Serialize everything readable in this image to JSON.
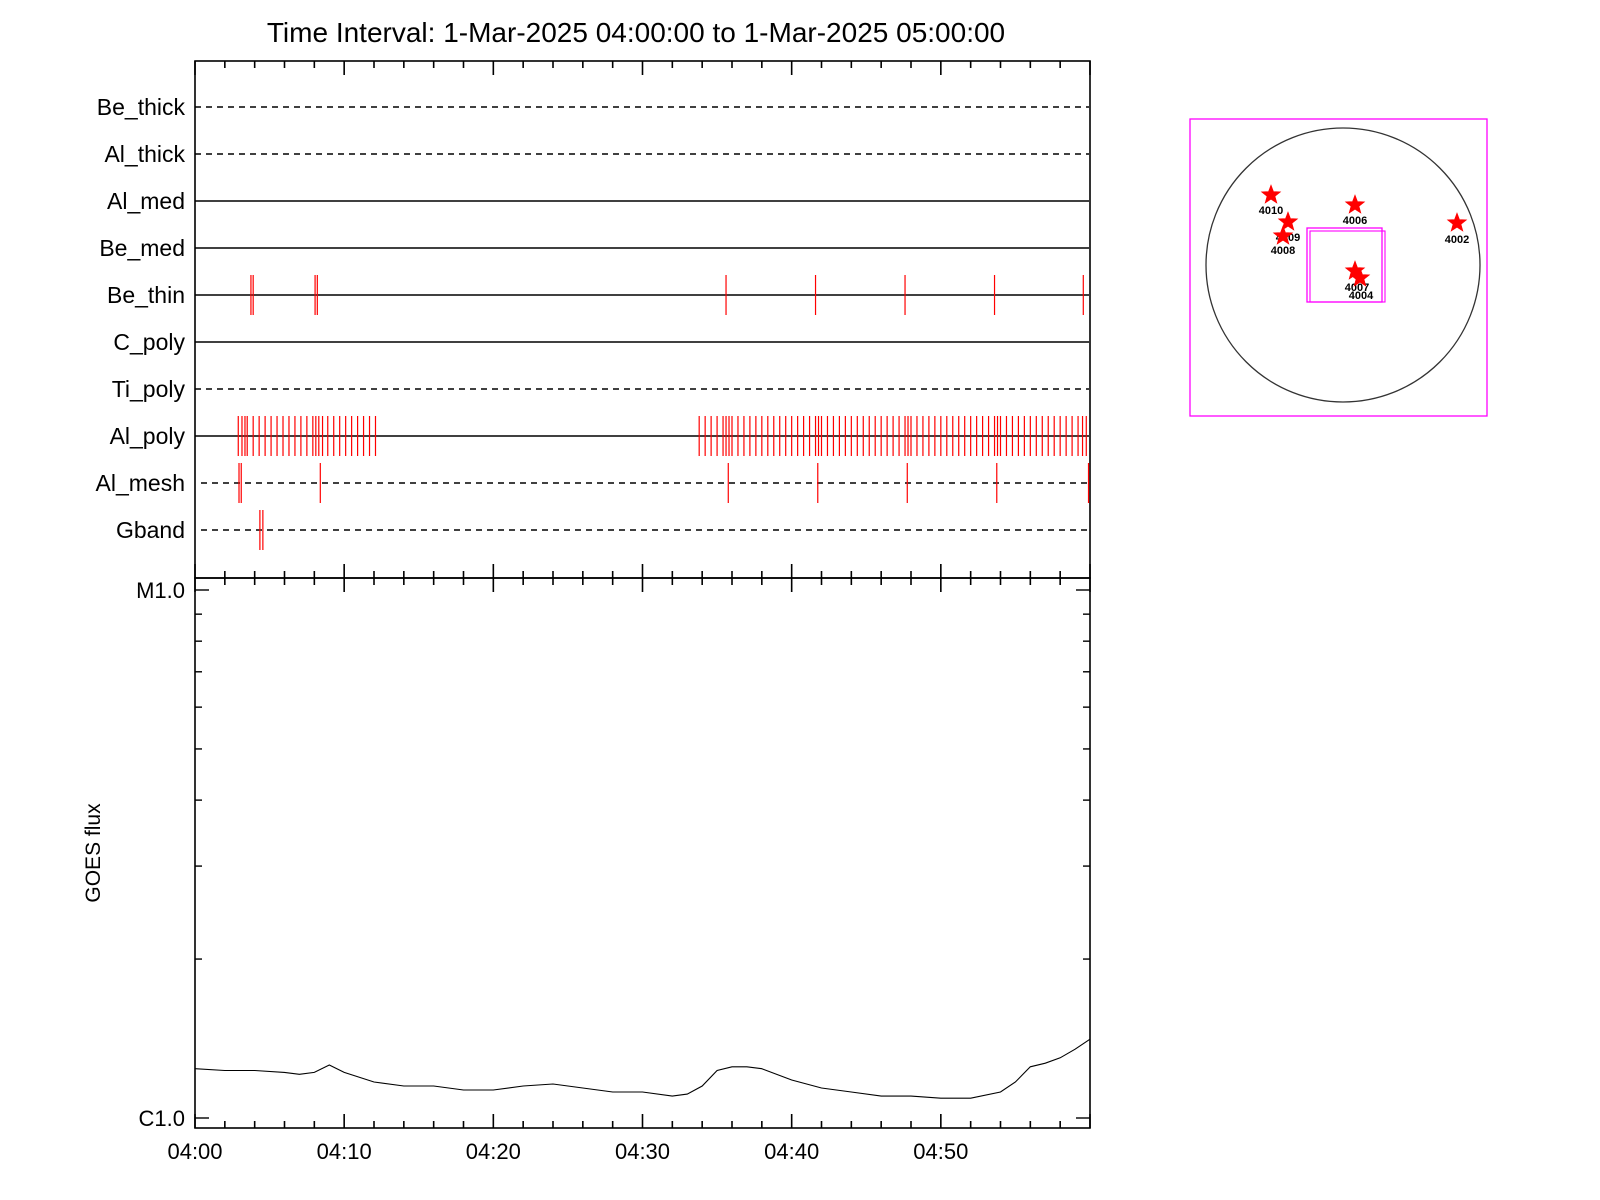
{
  "title": "Time Interval:  1-Mar-2025 04:00:00 to  1-Mar-2025 05:00:00",
  "chart_data": {
    "type": "line",
    "x_range_minutes": [
      0,
      60
    ],
    "x_tick_labels": [
      "04:00",
      "04:10",
      "04:20",
      "04:30",
      "04:40",
      "04:50"
    ],
    "x_tick_values": [
      0,
      10,
      20,
      30,
      40,
      50
    ],
    "filter_rows": [
      {
        "label": "Be_thick",
        "style": "dashed",
        "events": []
      },
      {
        "label": "Al_thick",
        "style": "dashed",
        "events": []
      },
      {
        "label": "Al_med",
        "style": "solid",
        "events": []
      },
      {
        "label": "Be_med",
        "style": "solid",
        "events": []
      },
      {
        "label": "Be_thin",
        "style": "solid",
        "events": [
          3.75,
          3.9,
          8.05,
          8.2,
          35.6,
          41.6,
          47.6,
          53.6,
          59.55
        ]
      },
      {
        "label": "C_poly",
        "style": "solid",
        "events": []
      },
      {
        "label": "Ti_poly",
        "style": "dashed",
        "events": []
      },
      {
        "label": "Al_poly",
        "style": "solid",
        "events": [
          2.9,
          3.15,
          3.35,
          3.5,
          3.9,
          4.3,
          4.7,
          5.1,
          5.5,
          5.9,
          6.3,
          6.7,
          7.1,
          7.5,
          7.9,
          8.1,
          8.3,
          8.55,
          8.9,
          9.3,
          9.7,
          10.1,
          10.5,
          10.9,
          11.3,
          11.7,
          12.1,
          33.8,
          34.2,
          34.6,
          35.0,
          35.4,
          35.6,
          35.8,
          36.0,
          36.4,
          36.8,
          37.2,
          37.6,
          38.0,
          38.4,
          38.8,
          39.2,
          39.6,
          40.0,
          40.4,
          40.8,
          41.2,
          41.6,
          41.8,
          42.0,
          42.4,
          42.8,
          43.2,
          43.6,
          44.0,
          44.4,
          44.8,
          45.2,
          45.6,
          46.0,
          46.4,
          46.8,
          47.2,
          47.6,
          47.8,
          48.0,
          48.4,
          48.8,
          49.2,
          49.6,
          50.0,
          50.4,
          50.8,
          51.2,
          51.6,
          52.0,
          52.4,
          52.8,
          53.2,
          53.6,
          53.8,
          54.0,
          54.4,
          54.8,
          55.2,
          55.6,
          56.0,
          56.4,
          56.8,
          57.2,
          57.6,
          58.0,
          58.4,
          58.8,
          59.2,
          59.5,
          59.75
        ]
      },
      {
        "label": "Al_mesh",
        "style": "dashed",
        "events": [
          2.95,
          3.1,
          8.4,
          35.75,
          41.75,
          47.75,
          53.75,
          59.9
        ]
      },
      {
        "label": "Gband",
        "style": "dashed",
        "events": [
          4.35,
          4.55
        ]
      }
    ],
    "goes": {
      "ylabel": "GOES flux",
      "y_tick_labels": [
        "M1.0",
        "C1.0"
      ],
      "y_range": [
        1e-06,
        1e-05
      ],
      "x": [
        0,
        2,
        4,
        6,
        7,
        8,
        9,
        10,
        12,
        14,
        16,
        18,
        20,
        22,
        24,
        26,
        28,
        30,
        32,
        33,
        34,
        35,
        36,
        37,
        38,
        40,
        42,
        44,
        46,
        48,
        50,
        52,
        54,
        55,
        56,
        57,
        58,
        59,
        60
      ],
      "y": [
        1.24e-06,
        1.23e-06,
        1.23e-06,
        1.22e-06,
        1.21e-06,
        1.22e-06,
        1.26e-06,
        1.22e-06,
        1.17e-06,
        1.15e-06,
        1.15e-06,
        1.13e-06,
        1.13e-06,
        1.15e-06,
        1.16e-06,
        1.14e-06,
        1.12e-06,
        1.12e-06,
        1.1e-06,
        1.11e-06,
        1.15e-06,
        1.23e-06,
        1.25e-06,
        1.25e-06,
        1.24e-06,
        1.18e-06,
        1.14e-06,
        1.12e-06,
        1.1e-06,
        1.1e-06,
        1.09e-06,
        1.09e-06,
        1.12e-06,
        1.17e-06,
        1.25e-06,
        1.27e-06,
        1.3e-06,
        1.35e-06,
        1.41e-06
      ]
    },
    "context": {
      "active_regions": [
        "4010",
        "4009",
        "4008",
        "4006",
        "4002",
        "4007",
        "4004"
      ]
    }
  },
  "colors": {
    "events": "#ff0000",
    "axes": "#000000",
    "frame": "#ff00ff",
    "stars": "#ff0000"
  }
}
